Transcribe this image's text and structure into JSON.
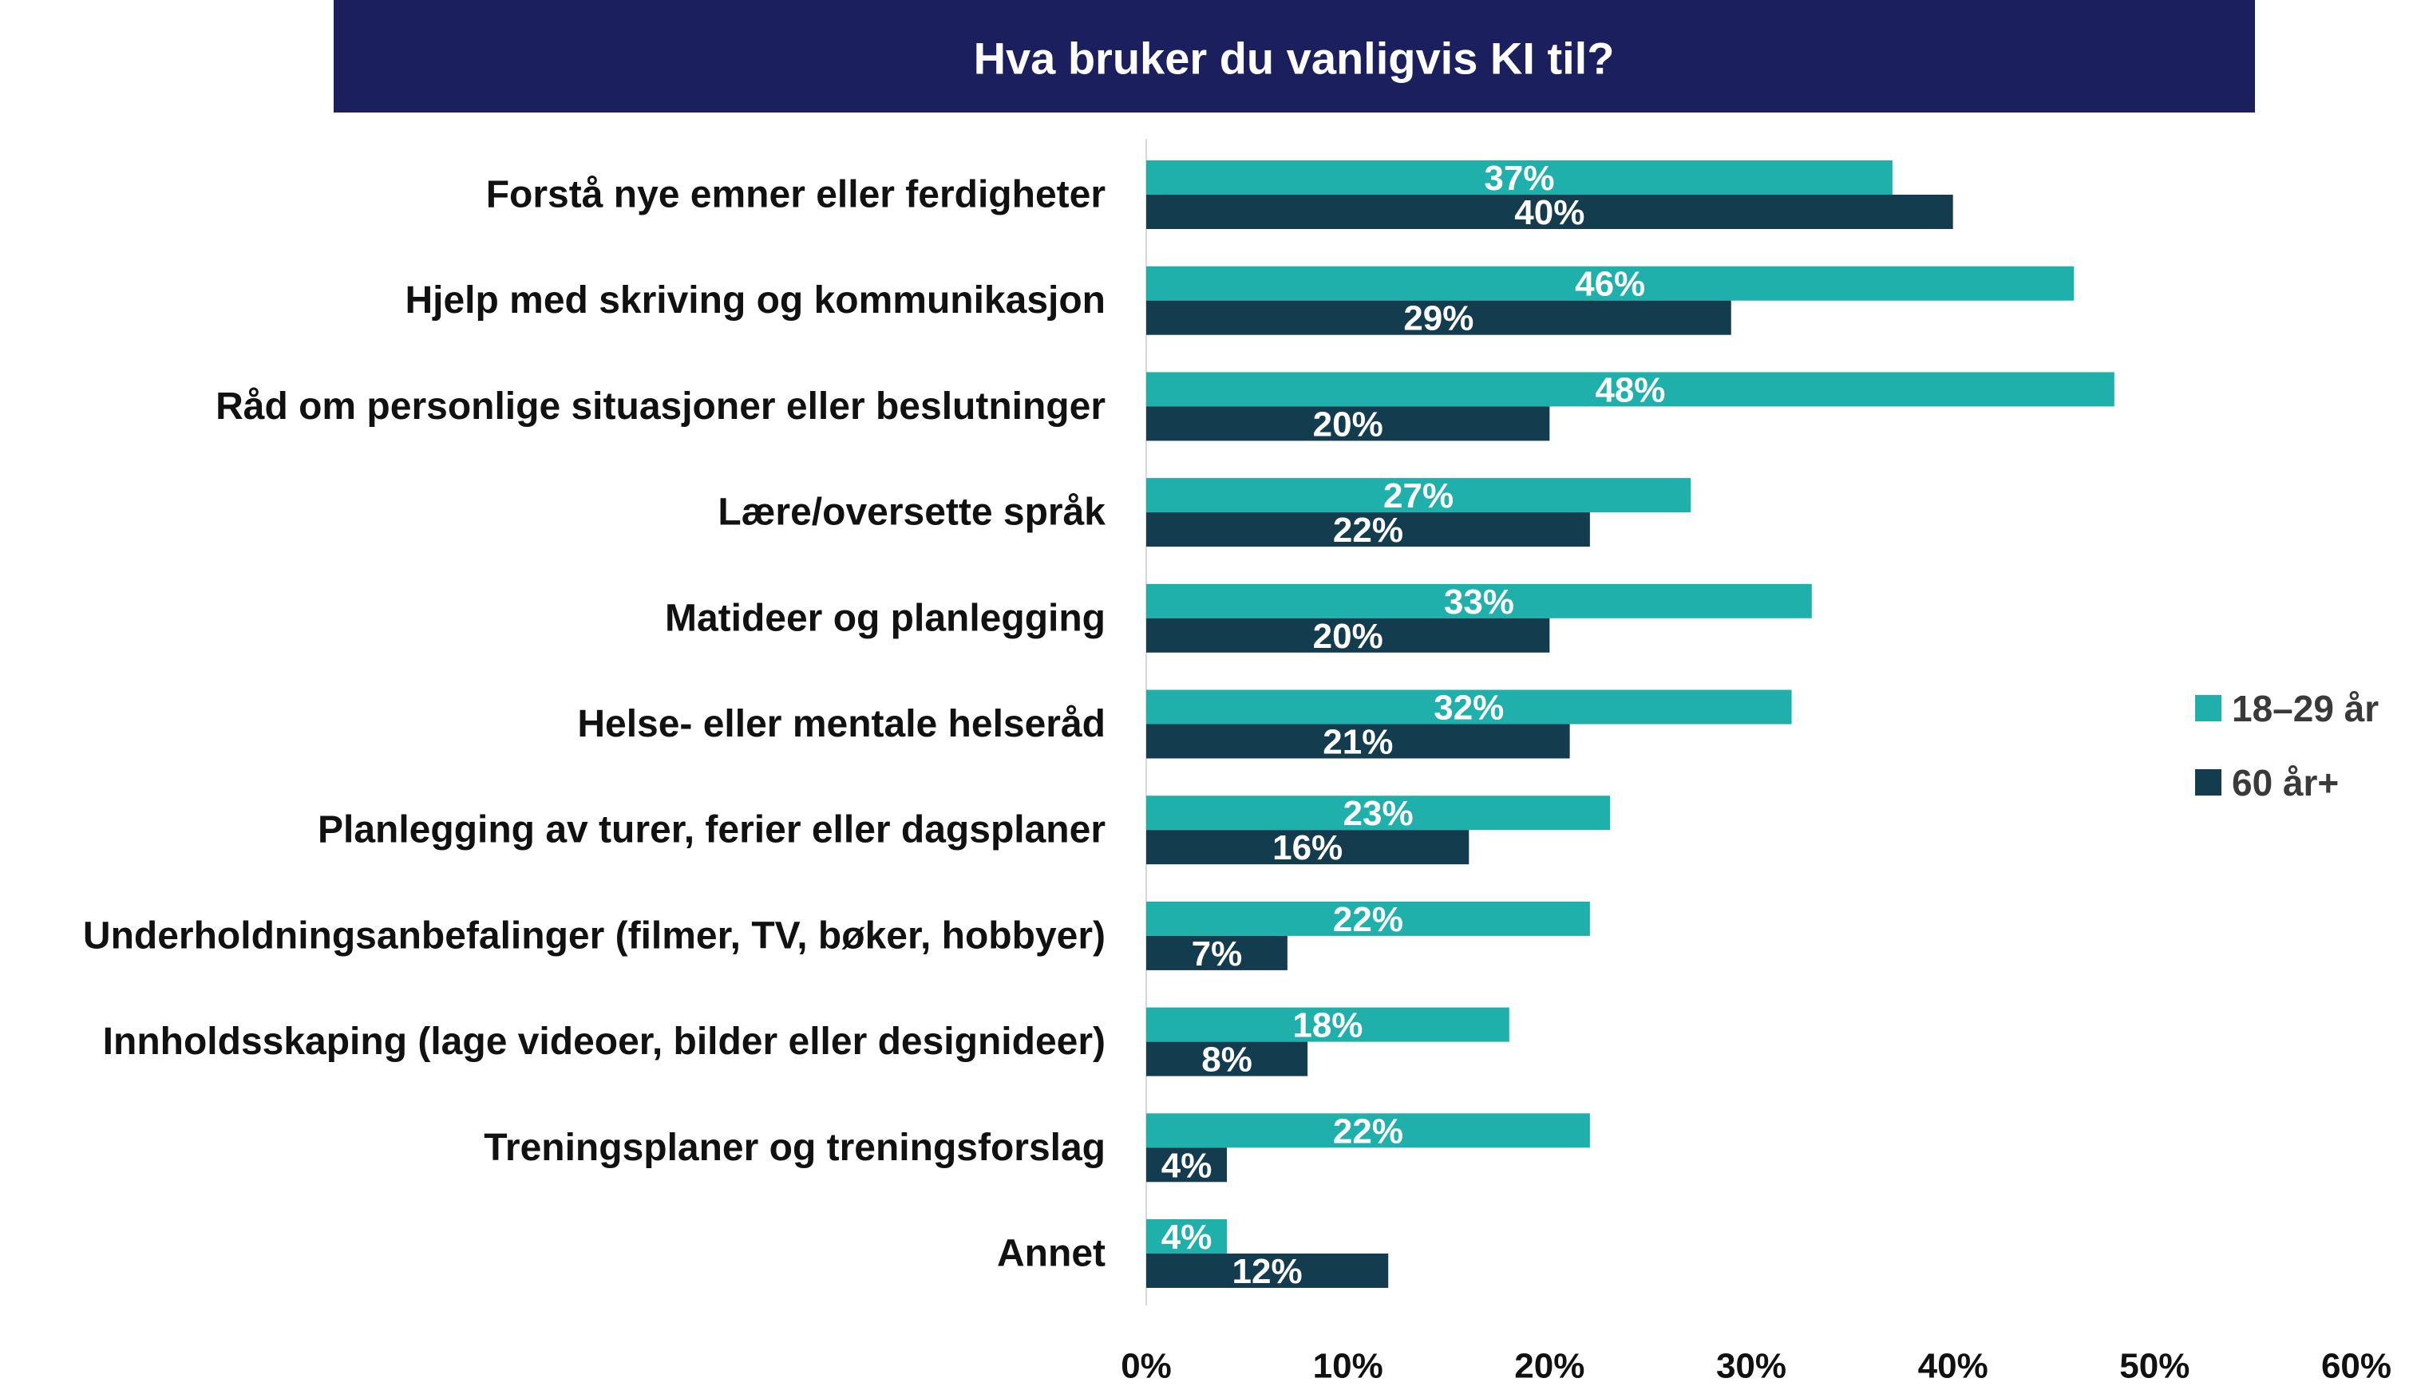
{
  "chart_data": {
    "type": "bar",
    "orientation": "horizontal",
    "title": "Hva bruker du vanligvis KI til?",
    "xlabel": "",
    "ylabel": "",
    "unit": "%",
    "xlim": [
      0,
      60
    ],
    "x_tick_labels": [
      "0%",
      "10%",
      "20%",
      "30%",
      "40%",
      "50%",
      "60%"
    ],
    "grid": false,
    "legend_position": "right",
    "data_labels": true,
    "categories": [
      "Forstå nye emner eller ferdigheter",
      "Hjelp med skriving og kommunikasjon",
      "Råd om personlige situasjoner eller beslutninger",
      "Lære/oversette språk",
      "Matideer og planlegging",
      "Helse- eller mentale helseråd",
      "Planlegging av turer, ferier eller dagsplaner",
      "Underholdningsanbefalinger (filmer, TV, bøker, hobbyer)",
      "Innholdsskaping (lage videoer, bilder eller designideer)",
      "Treningsplaner og treningsforslag",
      "Annet"
    ],
    "series": [
      {
        "name": "18–29 år",
        "color": "#1fb0ab",
        "values": [
          37,
          46,
          48,
          27,
          33,
          32,
          23,
          22,
          18,
          22,
          4
        ]
      },
      {
        "name": "60 år+",
        "color": "#133c4f",
        "values": [
          40,
          29,
          20,
          22,
          20,
          21,
          16,
          7,
          8,
          4,
          12
        ]
      }
    ]
  },
  "colors": {
    "title_banner": "#1b1f5e",
    "axis_line": "#d9d9d9"
  }
}
